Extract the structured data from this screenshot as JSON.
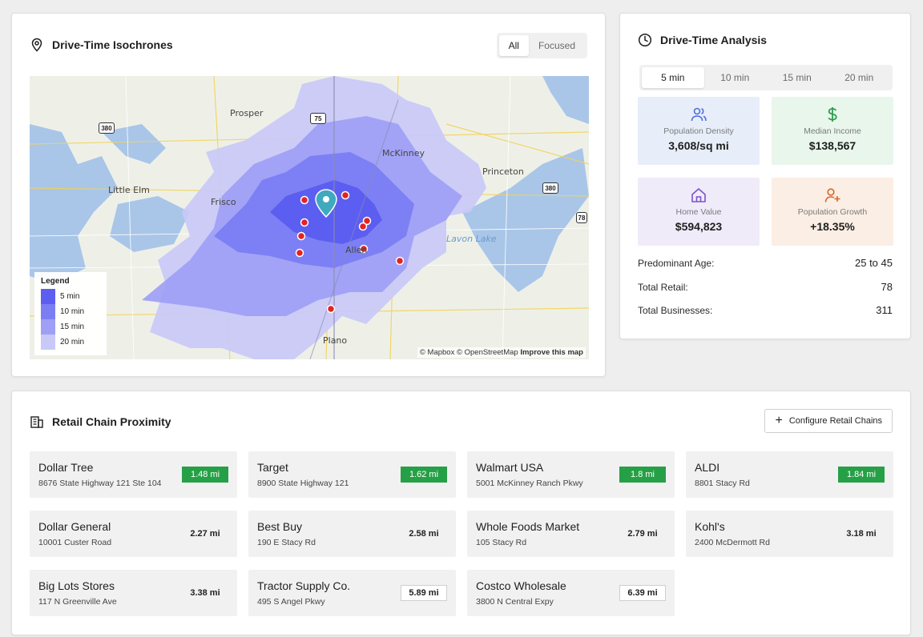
{
  "isochrones": {
    "title": "Drive-Time Isochrones",
    "toggle": {
      "all": "All",
      "focused": "Focused",
      "active": "all"
    },
    "map": {
      "places": [
        "Prosper",
        "McKinney",
        "Princeton",
        "Little Elm",
        "Frisco",
        "Allen",
        "Plano",
        "Lavon Lake"
      ],
      "shields": [
        "380",
        "75",
        "380",
        "78"
      ],
      "legend": {
        "title": "Legend",
        "items": [
          {
            "label": "5 min",
            "color": "#5b5ef0"
          },
          {
            "label": "10 min",
            "color": "#7b7ef3"
          },
          {
            "label": "15 min",
            "color": "#9e9ff5"
          },
          {
            "label": "20 min",
            "color": "#c9c9f7"
          }
        ]
      },
      "attribution": {
        "mapbox": "© Mapbox",
        "osm": "© OpenStreetMap",
        "improve": "Improve this map"
      }
    }
  },
  "analysis": {
    "title": "Drive-Time Analysis",
    "tabs": [
      "5 min",
      "10 min",
      "15 min",
      "20 min"
    ],
    "active_tab": "5 min",
    "stats": {
      "density": {
        "label": "Population Density",
        "value": "3,608/sq mi",
        "icon": "users-icon",
        "color": "#4f6fd8"
      },
      "income": {
        "label": "Median Income",
        "value": "$138,567",
        "icon": "dollar-icon",
        "color": "#2e9e4f"
      },
      "home": {
        "label": "Home Value",
        "value": "$594,823",
        "icon": "home-icon",
        "color": "#7a55c9"
      },
      "growth": {
        "label": "Population Growth",
        "value": "+18.35%",
        "icon": "user-plus-icon",
        "color": "#d9652b"
      }
    },
    "details": {
      "age_label": "Predominant Age:",
      "age_value": "25 to 45",
      "retail_label": "Total Retail:",
      "retail_value": "78",
      "biz_label": "Total Businesses:",
      "biz_value": "311"
    }
  },
  "retail": {
    "title": "Retail Chain Proximity",
    "configure_label": "Configure Retail Chains",
    "stores": [
      {
        "name": "Dollar Tree",
        "address": "8676 State Highway 121 Ste 104",
        "distance": "1.48 mi",
        "style": "green"
      },
      {
        "name": "Target",
        "address": "8900 State Highway 121",
        "distance": "1.62 mi",
        "style": "green"
      },
      {
        "name": "Walmart USA",
        "address": "5001 McKinney Ranch Pkwy",
        "distance": "1.8 mi",
        "style": "green"
      },
      {
        "name": "ALDI",
        "address": "8801 Stacy Rd",
        "distance": "1.84 mi",
        "style": "green"
      },
      {
        "name": "Dollar General",
        "address": "10001 Custer Road",
        "distance": "2.27 mi",
        "style": "plain"
      },
      {
        "name": "Best Buy",
        "address": "190 E Stacy Rd",
        "distance": "2.58 mi",
        "style": "plain"
      },
      {
        "name": "Whole Foods Market",
        "address": "105 Stacy Rd",
        "distance": "2.79 mi",
        "style": "plain"
      },
      {
        "name": "Kohl's",
        "address": "2400 McDermott Rd",
        "distance": "3.18 mi",
        "style": "plain"
      },
      {
        "name": "Big Lots Stores",
        "address": "117 N Greenville Ave",
        "distance": "3.38 mi",
        "style": "plain"
      },
      {
        "name": "Tractor Supply Co.",
        "address": "495 S Angel Pkwy",
        "distance": "5.89 mi",
        "style": "boxed"
      },
      {
        "name": "Costco Wholesale",
        "address": "3800 N Central Expy",
        "distance": "6.39 mi",
        "style": "boxed"
      }
    ]
  }
}
